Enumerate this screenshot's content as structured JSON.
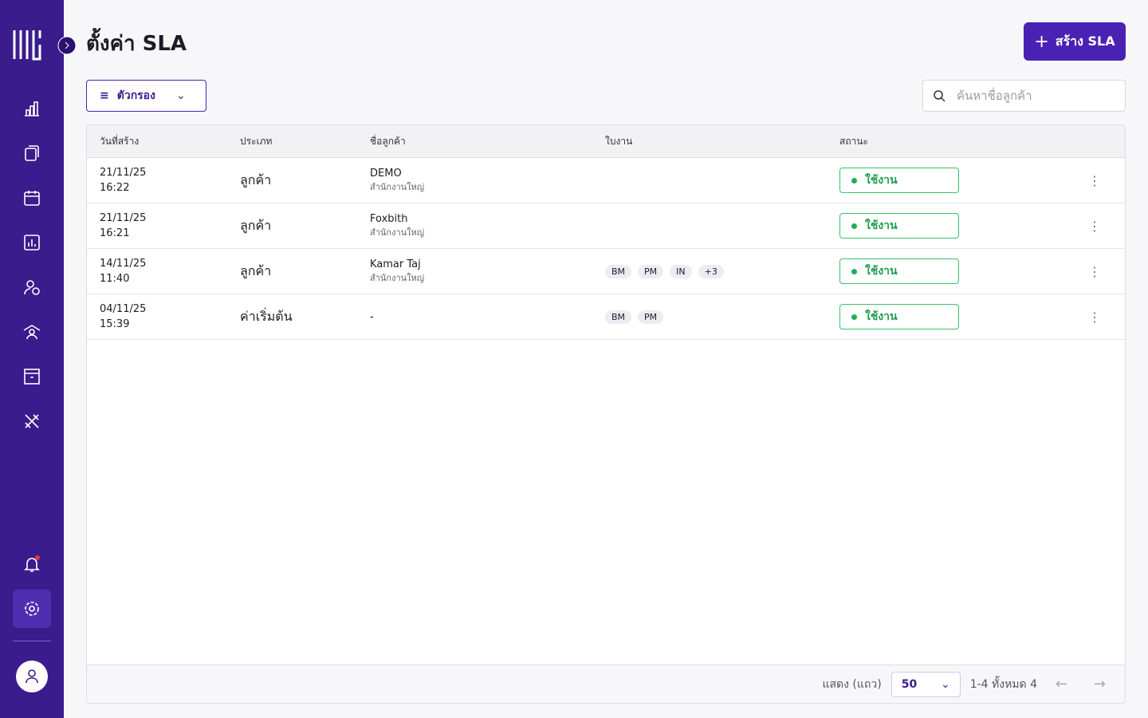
{
  "header": {
    "title": "ตั้งค่า SLA",
    "create_button": "สร้าง SLA"
  },
  "toolbar": {
    "filter": "ตัวกรอง",
    "search_placeholder": "ค้นหาชื่อลูกค้า"
  },
  "table": {
    "columns": [
      "วันที่สร้าง",
      "ประเภท",
      "ชื่อลูกค้า",
      "ใบงาน",
      "สถานะ"
    ],
    "rows": [
      {
        "date": "21/11/25",
        "time": "16:22",
        "type": "ลูกค้า",
        "customer": "DEMO",
        "branch": "สำนักงานใหญ่",
        "tags": [],
        "status": "ใช้งาน"
      },
      {
        "date": "21/11/25",
        "time": "16:21",
        "type": "ลูกค้า",
        "customer": "Foxbith",
        "branch": "สำนักงานใหญ่",
        "tags": [],
        "status": "ใช้งาน"
      },
      {
        "date": "14/11/25",
        "time": "11:40",
        "type": "ลูกค้า",
        "customer": "Kamar Taj",
        "branch": "สำนักงานใหญ่",
        "tags": [
          "BM",
          "PM",
          "IN",
          "+3"
        ],
        "status": "ใช้งาน"
      },
      {
        "date": "04/11/25",
        "time": "15:39",
        "type": "ค่าเริ่มต้น",
        "customer": "-",
        "tags": [
          "BM",
          "PM"
        ],
        "status": "ใช้งาน"
      }
    ]
  },
  "pagination": {
    "rows_label": "แสดง (แถว)",
    "page_size": "50",
    "range": "1-4 ทั้งหมด 4"
  }
}
